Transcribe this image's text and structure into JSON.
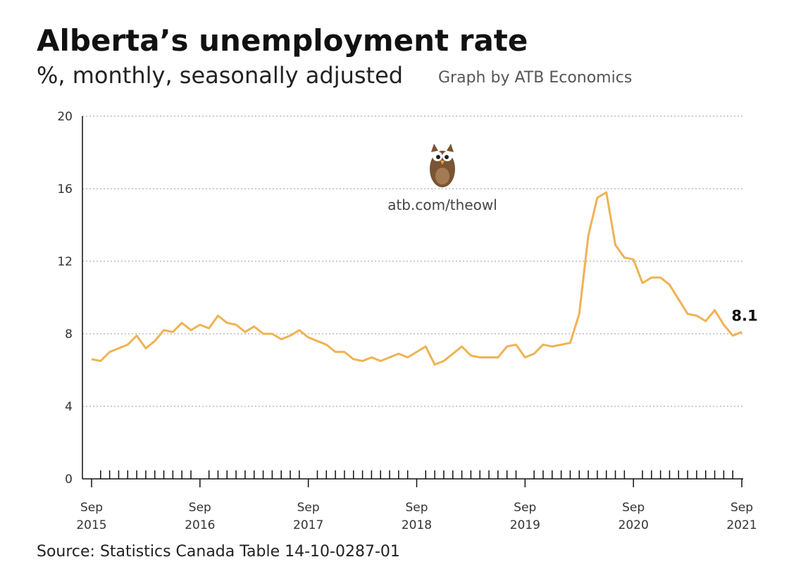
{
  "chart_data": {
    "type": "line",
    "title": "Alberta’s unemployment rate",
    "subtitle": "%, monthly, seasonally adjusted",
    "credit": "Graph by ATB Economics",
    "annotation": "atb.com/theowl",
    "source": "Source: Statistics Canada Table 14-10-0287-01",
    "categories": [
      "Sep 2015",
      null,
      null,
      null,
      null,
      null,
      null,
      null,
      null,
      null,
      null,
      null,
      "Sep 2016",
      null,
      null,
      null,
      null,
      null,
      null,
      null,
      null,
      null,
      null,
      null,
      "Sep 2017",
      null,
      null,
      null,
      null,
      null,
      null,
      null,
      null,
      null,
      null,
      null,
      "Sep 2018",
      null,
      null,
      null,
      null,
      null,
      null,
      null,
      null,
      null,
      null,
      null,
      "Sep 2019",
      null,
      null,
      null,
      null,
      null,
      null,
      null,
      null,
      null,
      null,
      null,
      "Sep 2020",
      null,
      null,
      null,
      null,
      null,
      null,
      null,
      null,
      null,
      null,
      null,
      "Sep 2021"
    ],
    "values": [
      6.6,
      6.5,
      7.0,
      7.2,
      7.4,
      7.9,
      7.2,
      7.6,
      8.2,
      8.1,
      8.6,
      8.2,
      8.5,
      8.3,
      9.0,
      8.6,
      8.5,
      8.1,
      8.4,
      8.0,
      8.0,
      7.7,
      7.9,
      8.2,
      7.8,
      7.6,
      7.4,
      7.0,
      7.0,
      6.6,
      6.5,
      6.7,
      6.5,
      6.7,
      6.9,
      6.7,
      7.0,
      7.3,
      6.3,
      6.5,
      6.9,
      7.3,
      6.8,
      6.7,
      6.7,
      6.7,
      7.3,
      7.4,
      6.7,
      6.9,
      7.4,
      7.3,
      7.4,
      7.5,
      9.1,
      13.4,
      15.5,
      15.8,
      12.9,
      12.2,
      12.1,
      10.8,
      11.1,
      11.1,
      10.7,
      9.9,
      9.1,
      9.0,
      8.7,
      9.3,
      8.5,
      7.9,
      8.1
    ],
    "color": "#f0b254",
    "ylim": [
      0,
      20
    ],
    "yticks": [
      0,
      4,
      8,
      12,
      16,
      20
    ],
    "grid": true
  }
}
